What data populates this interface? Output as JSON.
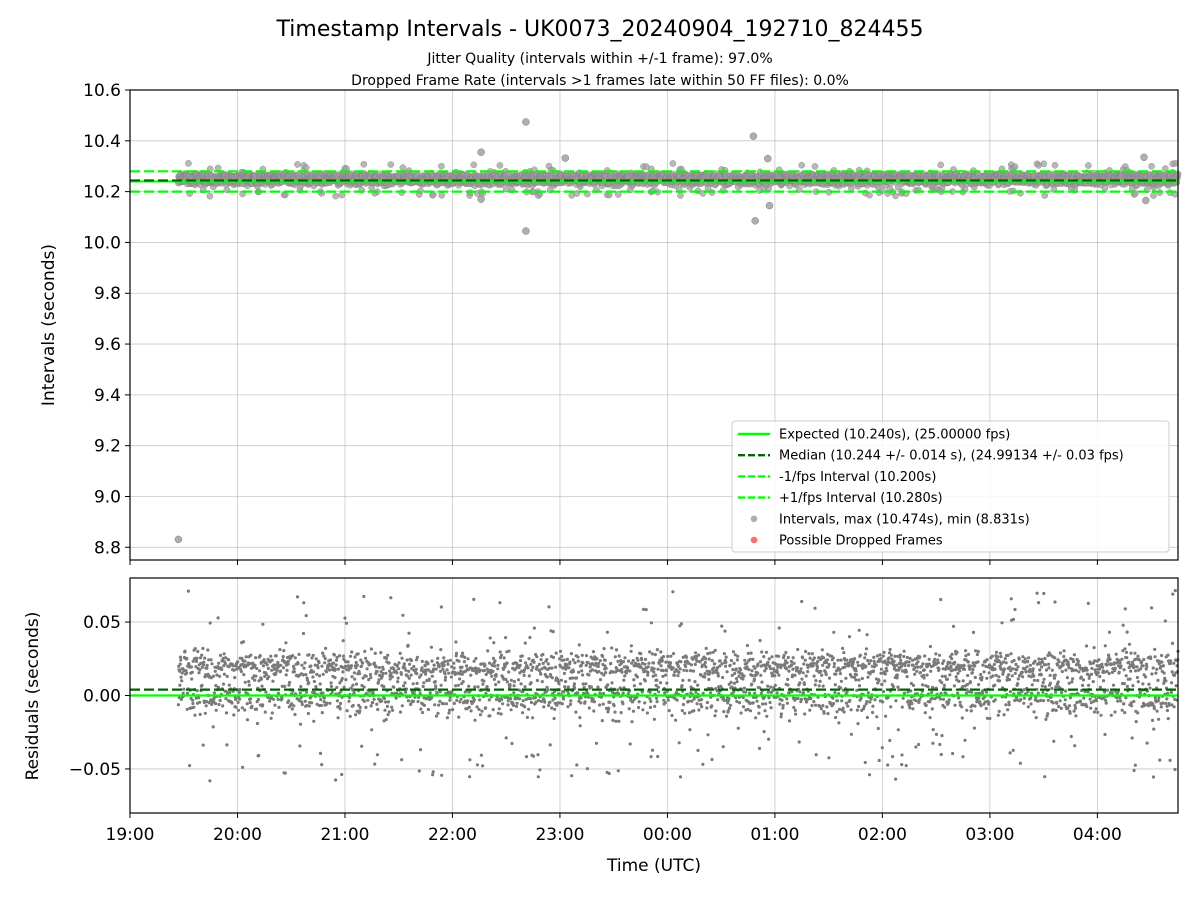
{
  "figure": {
    "title": "Timestamp Intervals - UK0073_20240904_192710_824455",
    "subtitle_1": "Jitter Quality (intervals within +/-1 frame): 97.0%",
    "subtitle_2": "Dropped Frame Rate (intervals >1 frames late within 50 FF files): 0.0%"
  },
  "chart_data": [
    {
      "type": "scatter",
      "name": "intervals",
      "ylabel": "Intervals (seconds)",
      "xlabel": "",
      "ylim": [
        8.75,
        10.6
      ],
      "yticks": [
        8.8,
        9.0,
        9.2,
        9.4,
        9.6,
        9.8,
        10.0,
        10.2,
        10.4,
        10.6
      ],
      "ytick_labels": [
        "8.8",
        "9.0",
        "9.2",
        "9.4",
        "9.6",
        "9.8",
        "10.0",
        "10.2",
        "10.4",
        "10.6"
      ],
      "grid": true,
      "legend_position": "lower-right",
      "expected": 10.24,
      "median": 10.244,
      "lower_bound": 10.2,
      "upper_bound": 10.28,
      "x_start": "19:27",
      "x_end": "04:45",
      "legend": [
        {
          "label": "Expected (10.240s), (25.00000 fps)",
          "style": "solid",
          "color": "#00ff00"
        },
        {
          "label": "Median (10.244 +/- 0.014 s), (24.99134 +/- 0.03 fps)",
          "style": "dashed",
          "color": "#006400"
        },
        {
          "label": "-1/fps Interval (10.200s)",
          "style": "dashed",
          "color": "#00ff00"
        },
        {
          "label": "+1/fps Interval (10.280s)",
          "style": "dashed",
          "color": "#00ff00"
        },
        {
          "label": "Intervals, max (10.474s), min (8.831s)",
          "style": "marker",
          "color": "#a0a0a0"
        },
        {
          "label": "Possible Dropped Frames",
          "style": "marker",
          "color": "#ff5555"
        }
      ],
      "outliers": [
        {
          "x": "19:27",
          "y": 8.831
        },
        {
          "x": "22:16",
          "y": 10.355
        },
        {
          "x": "22:16",
          "y": 10.17
        },
        {
          "x": "22:41",
          "y": 10.474
        },
        {
          "x": "22:41",
          "y": 10.045
        },
        {
          "x": "23:03",
          "y": 10.332
        },
        {
          "x": "00:48",
          "y": 10.418
        },
        {
          "x": "00:49",
          "y": 10.085
        },
        {
          "x": "00:56",
          "y": 10.33
        },
        {
          "x": "00:57",
          "y": 10.145
        },
        {
          "x": "04:26",
          "y": 10.335
        },
        {
          "x": "04:27",
          "y": 10.165
        }
      ]
    },
    {
      "type": "scatter",
      "name": "residuals",
      "ylabel": "Residuals (seconds)",
      "xlabel": "Time (UTC)",
      "ylim": [
        -0.08,
        0.08
      ],
      "yticks": [
        -0.05,
        0.0,
        0.05
      ],
      "ytick_labels": [
        "−0.05",
        "0.00",
        "0.05"
      ],
      "grid": true,
      "xlim": [
        "19:00",
        "04:45"
      ],
      "xtick_labels": [
        "19:00",
        "20:00",
        "21:00",
        "22:00",
        "23:00",
        "00:00",
        "01:00",
        "02:00",
        "03:00",
        "04:00"
      ],
      "zero_line": 0.0,
      "median_offset": 0.004,
      "x_start": "19:27",
      "x_end": "04:45"
    }
  ]
}
